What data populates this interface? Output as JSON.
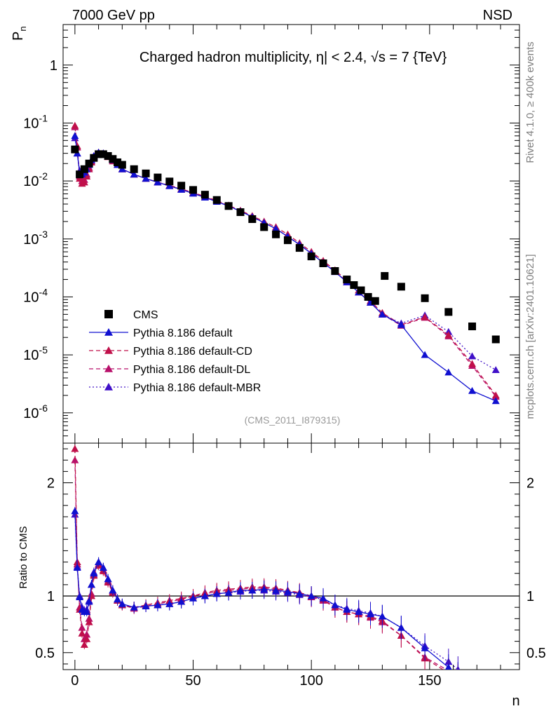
{
  "header": {
    "energy_label": "7000 GeV pp",
    "process_label": "NSD",
    "title": "Charged hadron multiplicity, η| < 2.4, √s = 7 {TeV}",
    "analysis_id": "(CMS_2011_I879315)",
    "side_rivet": "Rivet 4.1.0, ≥ 400k events",
    "side_mcplots": "mcplots.cern.ch [arXiv:2401.10621]"
  },
  "colors": {
    "data": "#000000",
    "default": "#1010d0",
    "cd": "#c0104a",
    "dl": "#b8106a",
    "mbr": "#4010c8",
    "ref_line": "#000000"
  },
  "chart_data": [
    {
      "type": "scatter",
      "panel": "main",
      "title": "Charged hadron multiplicity, η| < 2.4, √s = 7 {TeV}",
      "xlabel": "n",
      "ylabel": "P_n",
      "xlim": [
        -5,
        188
      ],
      "ylim": [
        3e-07,
        5
      ],
      "yscale": "log",
      "ytick_labels": [
        "1",
        "10^-1",
        "10^-2",
        "10^-3",
        "10^-4",
        "10^-5",
        "10^-6"
      ],
      "ytick_values": [
        1,
        0.1,
        0.01,
        0.001,
        0.0001,
        1e-05,
        1e-06
      ],
      "legend": [
        "CMS",
        "Pythia 8.186 default",
        "Pythia 8.186 default-CD",
        "Pythia 8.186 default-DL",
        "Pythia 8.186 default-MBR"
      ],
      "series": [
        {
          "name": "CMS",
          "marker": "square",
          "x": [
            0,
            2,
            4,
            6,
            8,
            10,
            12,
            14,
            16,
            18,
            20,
            25,
            30,
            35,
            40,
            45,
            50,
            55,
            60,
            65,
            70,
            75,
            80,
            85,
            90,
            95,
            100,
            105,
            110,
            115,
            118,
            121,
            124,
            127,
            131,
            138,
            148,
            158,
            168,
            178
          ],
          "y": [
            0.035,
            0.013,
            0.016,
            0.02,
            0.025,
            0.029,
            0.029,
            0.027,
            0.024,
            0.021,
            0.019,
            0.016,
            0.0135,
            0.0115,
            0.0098,
            0.0083,
            0.007,
            0.0058,
            0.0047,
            0.0037,
            0.0029,
            0.0022,
            0.0016,
            0.0012,
            0.00095,
            0.0007,
            0.0005,
            0.00038,
            0.00028,
            0.0002,
            0.00016,
            0.00013,
            0.0001,
            8.5e-05,
            0.00023,
            0.00015,
            9.5e-05,
            5.5e-05,
            3.1e-05,
            1.85e-05
          ]
        },
        {
          "name": "Pythia 8.186 default",
          "marker": "triangle",
          "x": [
            0,
            1,
            2,
            3,
            4,
            5,
            6,
            7,
            8,
            10,
            12,
            14,
            16,
            18,
            20,
            25,
            30,
            35,
            40,
            45,
            50,
            55,
            60,
            65,
            70,
            75,
            80,
            85,
            90,
            95,
            100,
            105,
            110,
            115,
            120,
            125,
            130,
            138,
            148,
            158,
            168,
            178
          ],
          "y": [
            0.06,
            0.03,
            0.014,
            0.013,
            0.014,
            0.016,
            0.019,
            0.023,
            0.027,
            0.031,
            0.03,
            0.027,
            0.023,
            0.019,
            0.016,
            0.013,
            0.011,
            0.0095,
            0.0082,
            0.0071,
            0.0061,
            0.0052,
            0.0044,
            0.0037,
            0.003,
            0.0024,
            0.0019,
            0.0015,
            0.0011,
            0.0008,
            0.00056,
            0.00039,
            0.00027,
            0.00018,
            0.00012,
            8e-05,
            5e-05,
            3.3e-05,
            1e-05,
            5e-06,
            2.4e-06,
            1.6e-06
          ]
        },
        {
          "name": "Pythia 8.186 default-CD",
          "marker": "triangle",
          "x": [
            0,
            1,
            2,
            3,
            4,
            5,
            6,
            7,
            8,
            10,
            12,
            14,
            16,
            18,
            20,
            25,
            30,
            35,
            40,
            45,
            50,
            55,
            60,
            65,
            70,
            75,
            80,
            85,
            90,
            95,
            100,
            105,
            110,
            115,
            120,
            125,
            130,
            138,
            148,
            158,
            168,
            178
          ],
          "y": [
            0.09,
            0.04,
            0.011,
            0.009,
            0.0095,
            0.012,
            0.016,
            0.021,
            0.026,
            0.03,
            0.029,
            0.026,
            0.022,
            0.019,
            0.016,
            0.013,
            0.011,
            0.0096,
            0.0084,
            0.0073,
            0.0063,
            0.0054,
            0.0046,
            0.0038,
            0.0031,
            0.0025,
            0.002,
            0.0016,
            0.0012,
            0.00085,
            0.0006,
            0.00042,
            0.00029,
            0.00019,
            0.00013,
            8.5e-05,
            5.3e-05,
            3.3e-05,
            4.5e-05,
            2.2e-05,
            7e-06,
            2e-06
          ]
        },
        {
          "name": "Pythia 8.186 default-DL",
          "marker": "triangle",
          "x": [
            0,
            1,
            2,
            3,
            4,
            5,
            6,
            7,
            8,
            10,
            12,
            14,
            16,
            18,
            20,
            25,
            30,
            35,
            40,
            45,
            50,
            55,
            60,
            65,
            70,
            75,
            80,
            85,
            90,
            95,
            100,
            105,
            110,
            115,
            120,
            125,
            130,
            138,
            148,
            158,
            168,
            178
          ],
          "y": [
            0.085,
            0.038,
            0.012,
            0.01,
            0.0105,
            0.013,
            0.017,
            0.022,
            0.027,
            0.031,
            0.03,
            0.027,
            0.023,
            0.019,
            0.016,
            0.013,
            0.011,
            0.0095,
            0.0083,
            0.0072,
            0.0062,
            0.0053,
            0.0045,
            0.0037,
            0.003,
            0.0024,
            0.0019,
            0.0015,
            0.0011,
            0.0008,
            0.00057,
            0.0004,
            0.00028,
            0.00018,
            0.00012,
            8e-05,
            5e-05,
            3.2e-05,
            4.4e-05,
            2.1e-05,
            6.5e-06,
            1.9e-06
          ]
        },
        {
          "name": "Pythia 8.186 default-MBR",
          "marker": "triangle",
          "x": [
            0,
            1,
            2,
            3,
            4,
            5,
            6,
            7,
            8,
            10,
            12,
            14,
            16,
            18,
            20,
            25,
            30,
            35,
            40,
            45,
            50,
            55,
            60,
            65,
            70,
            75,
            80,
            85,
            90,
            95,
            100,
            105,
            110,
            115,
            120,
            125,
            130,
            138,
            148,
            158,
            168,
            178
          ],
          "y": [
            0.055,
            0.03,
            0.015,
            0.013,
            0.014,
            0.016,
            0.019,
            0.023,
            0.027,
            0.031,
            0.03,
            0.027,
            0.023,
            0.019,
            0.016,
            0.013,
            0.011,
            0.0095,
            0.0082,
            0.0071,
            0.0061,
            0.0052,
            0.0044,
            0.0037,
            0.003,
            0.0024,
            0.0019,
            0.0015,
            0.0011,
            0.0008,
            0.00056,
            0.00039,
            0.00027,
            0.00018,
            0.00012,
            8e-05,
            5e-05,
            3.5e-05,
            4.8e-05,
            2.5e-05,
            9.5e-06,
            5.5e-06
          ]
        }
      ]
    },
    {
      "type": "line",
      "panel": "ratio",
      "xlabel": "n",
      "ylabel": "Ratio to CMS",
      "xlim": [
        -5,
        188
      ],
      "ylim": [
        0.35,
        2.35
      ],
      "xtick_values": [
        0,
        50,
        100,
        150
      ],
      "xtick_labels": [
        "0",
        "50",
        "100",
        "150"
      ],
      "ytick_values": [
        0.5,
        1,
        2
      ],
      "ytick_labels": [
        "0.5",
        "1",
        "2"
      ],
      "series": [
        {
          "name": "Pythia 8.186 default",
          "x": [
            0,
            1,
            2,
            3,
            4,
            5,
            6,
            7,
            8,
            10,
            12,
            14,
            16,
            18,
            20,
            25,
            30,
            35,
            40,
            45,
            50,
            55,
            60,
            65,
            70,
            75,
            80,
            85,
            90,
            95,
            100,
            105,
            110,
            115,
            120,
            125,
            130,
            138,
            148,
            158,
            162
          ],
          "y": [
            1.75,
            1.25,
            0.99,
            0.88,
            0.86,
            0.86,
            0.95,
            1.1,
            1.2,
            1.3,
            1.25,
            1.15,
            1.05,
            0.97,
            0.93,
            0.9,
            0.91,
            0.92,
            0.93,
            0.95,
            0.98,
            1.0,
            1.02,
            1.03,
            1.05,
            1.05,
            1.06,
            1.05,
            1.04,
            1.02,
            1.0,
            0.98,
            0.92,
            0.88,
            0.86,
            0.84,
            0.82,
            0.72,
            0.54,
            0.37,
            0.3
          ]
        },
        {
          "name": "Pythia 8.186 default-CD",
          "x": [
            0,
            1,
            2,
            3,
            4,
            5,
            6,
            7,
            8,
            10,
            12,
            14,
            16,
            18,
            20,
            25,
            30,
            35,
            40,
            45,
            50,
            55,
            60,
            65,
            70,
            75,
            80,
            85,
            90,
            95,
            100,
            105,
            110,
            115,
            120,
            125,
            130,
            138,
            148,
            158,
            162
          ],
          "y": [
            2.3,
            1.3,
            0.88,
            0.67,
            0.57,
            0.62,
            0.77,
            1.0,
            1.18,
            1.27,
            1.22,
            1.12,
            1.03,
            0.96,
            0.92,
            0.9,
            0.92,
            0.94,
            0.96,
            0.98,
            1.0,
            1.03,
            1.05,
            1.06,
            1.07,
            1.08,
            1.08,
            1.07,
            1.05,
            1.03,
            1.0,
            0.97,
            0.9,
            0.86,
            0.84,
            0.82,
            0.78,
            0.65,
            0.45,
            0.32,
            0.28
          ]
        },
        {
          "name": "Pythia 8.186 default-DL",
          "x": [
            0,
            1,
            2,
            3,
            4,
            5,
            6,
            7,
            8,
            10,
            12,
            14,
            16,
            18,
            20,
            25,
            30,
            35,
            40,
            45,
            50,
            55,
            60,
            65,
            70,
            75,
            80,
            85,
            90,
            95,
            100,
            105,
            110,
            115,
            120,
            125,
            130,
            138,
            148,
            158,
            162
          ],
          "y": [
            2.2,
            1.28,
            0.9,
            0.72,
            0.62,
            0.66,
            0.8,
            1.02,
            1.19,
            1.28,
            1.23,
            1.13,
            1.04,
            0.96,
            0.92,
            0.89,
            0.91,
            0.93,
            0.95,
            0.97,
            1.0,
            1.02,
            1.04,
            1.05,
            1.06,
            1.07,
            1.07,
            1.06,
            1.05,
            1.02,
            0.99,
            0.96,
            0.9,
            0.86,
            0.84,
            0.81,
            0.77,
            0.65,
            0.46,
            0.34,
            0.29
          ]
        },
        {
          "name": "Pythia 8.186 default-MBR",
          "x": [
            0,
            1,
            2,
            3,
            4,
            5,
            6,
            7,
            8,
            10,
            12,
            14,
            16,
            18,
            20,
            25,
            30,
            35,
            40,
            45,
            50,
            55,
            60,
            65,
            70,
            75,
            80,
            85,
            90,
            95,
            100,
            105,
            110,
            115,
            120,
            125,
            130,
            138,
            148,
            158,
            162
          ],
          "y": [
            1.72,
            1.26,
            1.0,
            0.9,
            0.87,
            0.88,
            0.96,
            1.1,
            1.21,
            1.3,
            1.25,
            1.15,
            1.05,
            0.97,
            0.93,
            0.9,
            0.91,
            0.92,
            0.93,
            0.95,
            0.98,
            1.0,
            1.02,
            1.03,
            1.04,
            1.05,
            1.05,
            1.04,
            1.03,
            1.01,
            0.99,
            0.97,
            0.92,
            0.89,
            0.87,
            0.85,
            0.82,
            0.72,
            0.56,
            0.42,
            0.35
          ]
        }
      ]
    }
  ]
}
